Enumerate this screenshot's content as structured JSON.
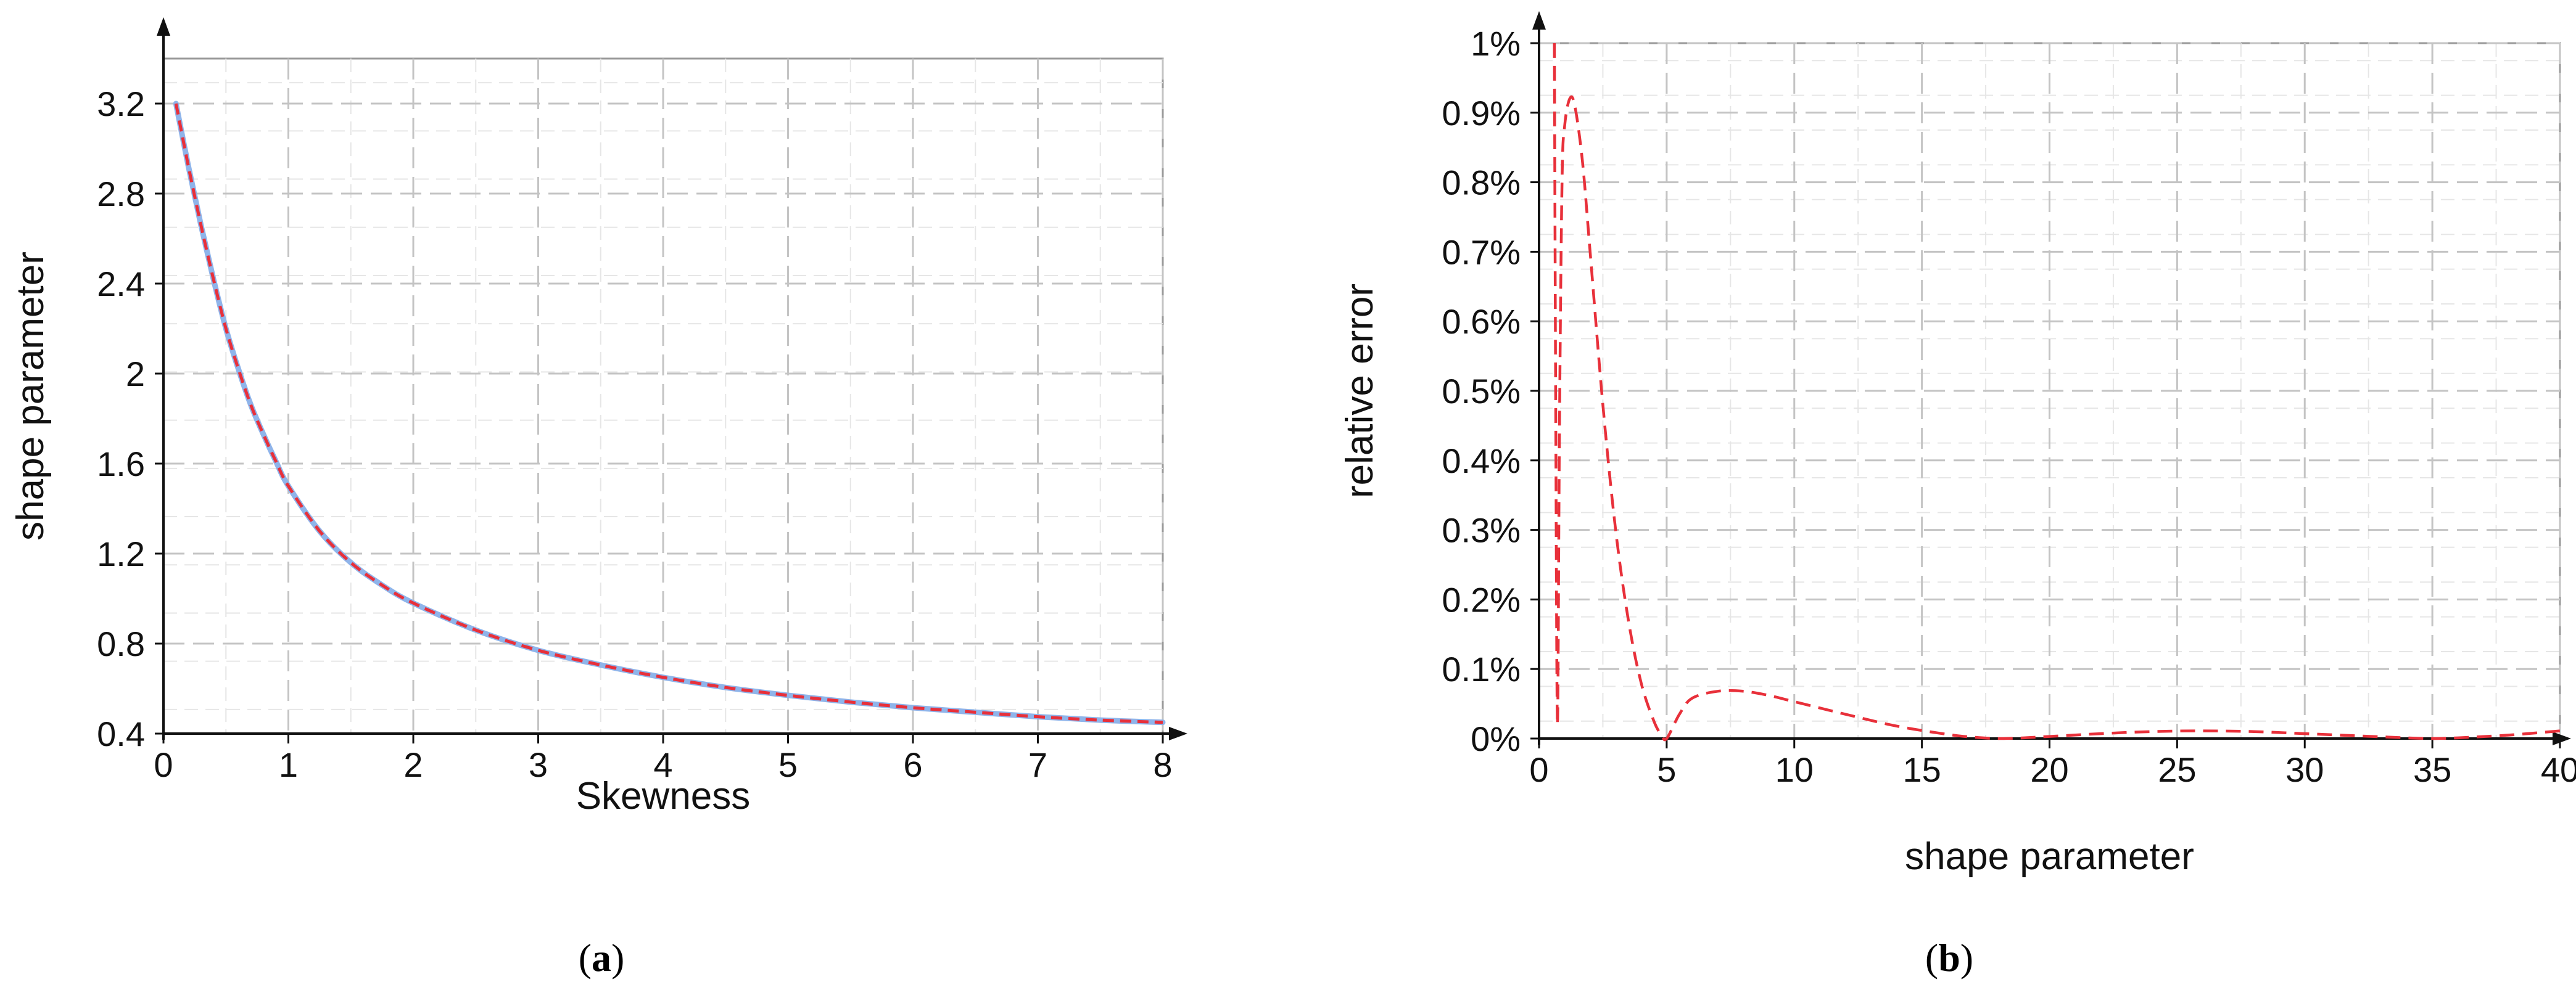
{
  "chart_data": [
    {
      "type": "line",
      "panel_label": "(a)",
      "panel_letter": "a",
      "xlabel": "Skewness",
      "ylabel": "shape parameter",
      "xlim": [
        0,
        8
      ],
      "ylim": [
        0.4,
        3.4
      ],
      "x_ticks": [
        "0",
        "1",
        "2",
        "3",
        "4",
        "5",
        "6",
        "7",
        "8"
      ],
      "y_ticks": [
        "0.4",
        "0.8",
        "1.2",
        "1.6",
        "2",
        "2.4",
        "2.8",
        "3.2"
      ],
      "grid": true,
      "colors": {
        "line": "#e8303a",
        "overlay": "#8fb4ea"
      },
      "series": [
        {
          "x": [
            0.1,
            0.2,
            0.3,
            0.4,
            0.5,
            0.6,
            0.7,
            0.8,
            0.9,
            1.0,
            1.25,
            1.5,
            1.75,
            2.0,
            2.5,
            3.0,
            3.5,
            4.0,
            4.5,
            5.0,
            5.5,
            6.0,
            6.5,
            7.0,
            7.5,
            8.0
          ],
          "y": [
            3.2,
            2.92,
            2.66,
            2.42,
            2.2,
            2.02,
            1.86,
            1.73,
            1.61,
            1.5,
            1.3,
            1.16,
            1.06,
            0.98,
            0.86,
            0.77,
            0.705,
            0.65,
            0.605,
            0.57,
            0.54,
            0.515,
            0.495,
            0.475,
            0.46,
            0.45
          ]
        }
      ]
    },
    {
      "type": "line",
      "panel_label": "(b)",
      "panel_letter": "b",
      "xlabel": "shape parameter",
      "ylabel": "relative error",
      "xlim": [
        0,
        40
      ],
      "ylim": [
        0,
        1
      ],
      "x_ticks": [
        "0",
        "5",
        "10",
        "15",
        "20",
        "25",
        "30",
        "35",
        "40"
      ],
      "y_ticks": [
        "0%",
        "0.1%",
        "0.2%",
        "0.3%",
        "0.4%",
        "0.5%",
        "0.6%",
        "0.7%",
        "0.8%",
        "0.9%",
        "1%"
      ],
      "grid": true,
      "colors": {
        "line": "#e8303a"
      },
      "series": [
        {
          "x": [
            0.6,
            0.65,
            0.72,
            0.8,
            0.9,
            1.0,
            1.2,
            1.4,
            1.7,
            2.0,
            2.5,
            3.0,
            3.5,
            4.0,
            4.5,
            4.8,
            5.0,
            5.5,
            6.0,
            7.0,
            8.0,
            9.0,
            10.0,
            12.0,
            14.0,
            16.0,
            17.0,
            18.0,
            19.0,
            20.0,
            22.0,
            24.0,
            26.0,
            28.0,
            30.0,
            32.0,
            34.0,
            35.0,
            36.0,
            38.0,
            40.0
          ],
          "y": [
            1.0,
            0.5,
            0.02,
            0.45,
            0.8,
            0.88,
            0.92,
            0.91,
            0.83,
            0.7,
            0.48,
            0.3,
            0.17,
            0.08,
            0.025,
            0.005,
            0.0,
            0.035,
            0.058,
            0.068,
            0.068,
            0.062,
            0.053,
            0.035,
            0.018,
            0.006,
            0.002,
            0.0,
            0.001,
            0.003,
            0.007,
            0.01,
            0.011,
            0.01,
            0.007,
            0.004,
            0.001,
            0.0,
            0.001,
            0.005,
            0.011
          ]
        }
      ]
    }
  ]
}
